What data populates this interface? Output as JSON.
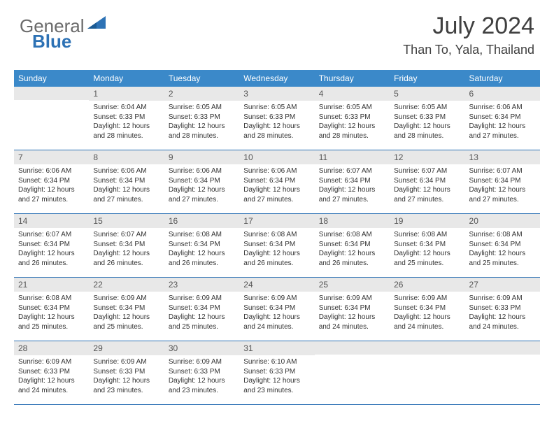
{
  "logo": {
    "general": "General",
    "blue": "Blue"
  },
  "title": "July 2024",
  "location": "Than To, Yala, Thailand",
  "colors": {
    "header_bg": "#3b89c9",
    "header_text": "#ffffff",
    "daynum_bg": "#e8e8e8",
    "border": "#2d72b5",
    "body_text": "#333333",
    "logo_blue": "#2d72b5",
    "logo_gray": "#6a6a6a"
  },
  "weekdays": [
    "Sunday",
    "Monday",
    "Tuesday",
    "Wednesday",
    "Thursday",
    "Friday",
    "Saturday"
  ],
  "first_weekday_index": 1,
  "days": [
    {
      "n": 1,
      "sunrise": "6:04 AM",
      "sunset": "6:33 PM",
      "daylight": "12 hours and 28 minutes."
    },
    {
      "n": 2,
      "sunrise": "6:05 AM",
      "sunset": "6:33 PM",
      "daylight": "12 hours and 28 minutes."
    },
    {
      "n": 3,
      "sunrise": "6:05 AM",
      "sunset": "6:33 PM",
      "daylight": "12 hours and 28 minutes."
    },
    {
      "n": 4,
      "sunrise": "6:05 AM",
      "sunset": "6:33 PM",
      "daylight": "12 hours and 28 minutes."
    },
    {
      "n": 5,
      "sunrise": "6:05 AM",
      "sunset": "6:33 PM",
      "daylight": "12 hours and 28 minutes."
    },
    {
      "n": 6,
      "sunrise": "6:06 AM",
      "sunset": "6:34 PM",
      "daylight": "12 hours and 27 minutes."
    },
    {
      "n": 7,
      "sunrise": "6:06 AM",
      "sunset": "6:34 PM",
      "daylight": "12 hours and 27 minutes."
    },
    {
      "n": 8,
      "sunrise": "6:06 AM",
      "sunset": "6:34 PM",
      "daylight": "12 hours and 27 minutes."
    },
    {
      "n": 9,
      "sunrise": "6:06 AM",
      "sunset": "6:34 PM",
      "daylight": "12 hours and 27 minutes."
    },
    {
      "n": 10,
      "sunrise": "6:06 AM",
      "sunset": "6:34 PM",
      "daylight": "12 hours and 27 minutes."
    },
    {
      "n": 11,
      "sunrise": "6:07 AM",
      "sunset": "6:34 PM",
      "daylight": "12 hours and 27 minutes."
    },
    {
      "n": 12,
      "sunrise": "6:07 AM",
      "sunset": "6:34 PM",
      "daylight": "12 hours and 27 minutes."
    },
    {
      "n": 13,
      "sunrise": "6:07 AM",
      "sunset": "6:34 PM",
      "daylight": "12 hours and 27 minutes."
    },
    {
      "n": 14,
      "sunrise": "6:07 AM",
      "sunset": "6:34 PM",
      "daylight": "12 hours and 26 minutes."
    },
    {
      "n": 15,
      "sunrise": "6:07 AM",
      "sunset": "6:34 PM",
      "daylight": "12 hours and 26 minutes."
    },
    {
      "n": 16,
      "sunrise": "6:08 AM",
      "sunset": "6:34 PM",
      "daylight": "12 hours and 26 minutes."
    },
    {
      "n": 17,
      "sunrise": "6:08 AM",
      "sunset": "6:34 PM",
      "daylight": "12 hours and 26 minutes."
    },
    {
      "n": 18,
      "sunrise": "6:08 AM",
      "sunset": "6:34 PM",
      "daylight": "12 hours and 26 minutes."
    },
    {
      "n": 19,
      "sunrise": "6:08 AM",
      "sunset": "6:34 PM",
      "daylight": "12 hours and 25 minutes."
    },
    {
      "n": 20,
      "sunrise": "6:08 AM",
      "sunset": "6:34 PM",
      "daylight": "12 hours and 25 minutes."
    },
    {
      "n": 21,
      "sunrise": "6:08 AM",
      "sunset": "6:34 PM",
      "daylight": "12 hours and 25 minutes."
    },
    {
      "n": 22,
      "sunrise": "6:09 AM",
      "sunset": "6:34 PM",
      "daylight": "12 hours and 25 minutes."
    },
    {
      "n": 23,
      "sunrise": "6:09 AM",
      "sunset": "6:34 PM",
      "daylight": "12 hours and 25 minutes."
    },
    {
      "n": 24,
      "sunrise": "6:09 AM",
      "sunset": "6:34 PM",
      "daylight": "12 hours and 24 minutes."
    },
    {
      "n": 25,
      "sunrise": "6:09 AM",
      "sunset": "6:34 PM",
      "daylight": "12 hours and 24 minutes."
    },
    {
      "n": 26,
      "sunrise": "6:09 AM",
      "sunset": "6:34 PM",
      "daylight": "12 hours and 24 minutes."
    },
    {
      "n": 27,
      "sunrise": "6:09 AM",
      "sunset": "6:33 PM",
      "daylight": "12 hours and 24 minutes."
    },
    {
      "n": 28,
      "sunrise": "6:09 AM",
      "sunset": "6:33 PM",
      "daylight": "12 hours and 24 minutes."
    },
    {
      "n": 29,
      "sunrise": "6:09 AM",
      "sunset": "6:33 PM",
      "daylight": "12 hours and 23 minutes."
    },
    {
      "n": 30,
      "sunrise": "6:09 AM",
      "sunset": "6:33 PM",
      "daylight": "12 hours and 23 minutes."
    },
    {
      "n": 31,
      "sunrise": "6:10 AM",
      "sunset": "6:33 PM",
      "daylight": "12 hours and 23 minutes."
    }
  ],
  "labels": {
    "sunrise": "Sunrise:",
    "sunset": "Sunset:",
    "daylight": "Daylight:"
  }
}
